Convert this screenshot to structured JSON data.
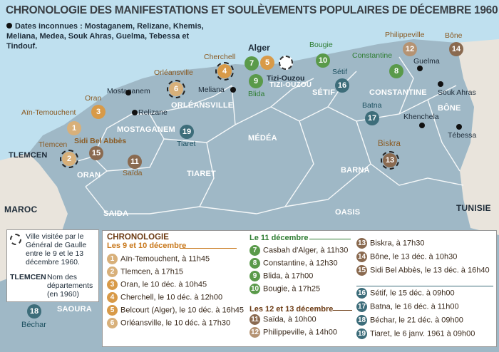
{
  "title": "CHRONOLOGIE DES MANIFESTATIONS ET SOULÈVEMENTS POPULAIRES DE DÉCEMBRE 1960",
  "unknown_dates": "Dates inconnues : Mostaganem, Relizane, Khemis, Meliana, Medea, Souk Ahras, Guelma, Tebessa et Tindouf.",
  "countries": [
    "MAROC",
    "TUNISIE"
  ],
  "departments": [
    "TLEMCEN",
    "ORAN",
    "MOSTAGANEM",
    "ORLÉANSVILLE",
    "SAIDA",
    "TIARET",
    "MÉDÉA",
    "TIZI-OUZOU",
    "SÉTIF",
    "CONSTANTINE",
    "BÔNE",
    "BARNA",
    "OASIS",
    "SAOURA"
  ],
  "cities": [
    "Mostaganem",
    "Relizane",
    "Meliana",
    "Guelma",
    "Souk Ahras",
    "Khenchela",
    "Tébessa",
    "Tizi-Ouzou"
  ],
  "markers": [
    {
      "n": "1",
      "label": "Aïn-Temouchent"
    },
    {
      "n": "2",
      "label": "Tlemcen"
    },
    {
      "n": "3",
      "label": "Oran"
    },
    {
      "n": "4",
      "label": "Cherchell"
    },
    {
      "n": "5",
      "label": ""
    },
    {
      "n": "6",
      "label": "Orléansville"
    },
    {
      "n": "7",
      "label": "Alger"
    },
    {
      "n": "8",
      "label": "Constantine"
    },
    {
      "n": "9",
      "label": "Blida"
    },
    {
      "n": "10",
      "label": "Bougie"
    },
    {
      "n": "11",
      "label": "Saïda"
    },
    {
      "n": "12",
      "label": "Philippeville"
    },
    {
      "n": "13",
      "label": "Biskra"
    },
    {
      "n": "14",
      "label": "Bône"
    },
    {
      "n": "15",
      "label": "Sidi Bel Abbès"
    },
    {
      "n": "16",
      "label": "Sétif"
    },
    {
      "n": "17",
      "label": "Batna"
    },
    {
      "n": "18",
      "label": "Béchar"
    },
    {
      "n": "19",
      "label": "Tiaret"
    }
  ],
  "legend": {
    "visit": "Ville visitée par le Général de Gaulle entre le 9 et le 13 décembre 1960.",
    "dept_sample": "TLEMCEN",
    "dept_text": "Nom des départements (en 1960)"
  },
  "chronology": {
    "title": "CHRONOLOGIE",
    "group1": "Les 9 et 10 décembre",
    "group2": "Le 11 décembre",
    "group3": "Les 12 et 13 décembre",
    "entries": [
      {
        "n": "1",
        "text": "Aïn-Temouchent, à 11h45",
        "color": "#d8b07a"
      },
      {
        "n": "2",
        "text": "Tlemcen, à 17h15",
        "color": "#d8b07a"
      },
      {
        "n": "3",
        "text": "Oran, le 10 déc. à 10h45",
        "color": "#d89a48"
      },
      {
        "n": "4",
        "text": "Cherchell, le 10 déc. à 12h00",
        "color": "#d89a48"
      },
      {
        "n": "5",
        "text": "Belcourt (Alger), le 10 déc. à 16h45",
        "color": "#d89a48"
      },
      {
        "n": "6",
        "text": "Orléansville, le 10 déc. à 17h30",
        "color": "#d8b07a"
      },
      {
        "n": "7",
        "text": "Casbah d'Alger, à 11h30",
        "color": "#5a9a4a"
      },
      {
        "n": "8",
        "text": "Constantine, à 12h30",
        "color": "#5a9a4a"
      },
      {
        "n": "9",
        "text": "Blida, à 17h00",
        "color": "#5a9a4a"
      },
      {
        "n": "10",
        "text": "Bougie, à 17h25",
        "color": "#5a9a4a"
      },
      {
        "n": "11",
        "text": "Saïda, à 10h00",
        "color": "#8a6a50"
      },
      {
        "n": "12",
        "text": "Philippeville, à 14h00",
        "color": "#b59373"
      },
      {
        "n": "13",
        "text": "Biskra, à 17h30",
        "color": "#8a6a50"
      },
      {
        "n": "14",
        "text": "Bône, le 13 déc. à 10h30",
        "color": "#8a6a50"
      },
      {
        "n": "15",
        "text": "Sidi Bel Abbès, le 13 déc. à 16h40",
        "color": "#8a6a50"
      },
      {
        "n": "16",
        "text": "Sétif, le 15 déc. à 09h00",
        "color": "#3d6d7a"
      },
      {
        "n": "17",
        "text": "Batna, le 16 déc. à 11h00",
        "color": "#3d6d7a"
      },
      {
        "n": "18",
        "text": "Béchar, le 21 déc. à 09h00",
        "color": "#3d6d7a"
      },
      {
        "n": "19",
        "text": "Tiaret, le 6 janv. 1961 à 09h00",
        "color": "#3d6d7a"
      }
    ]
  }
}
